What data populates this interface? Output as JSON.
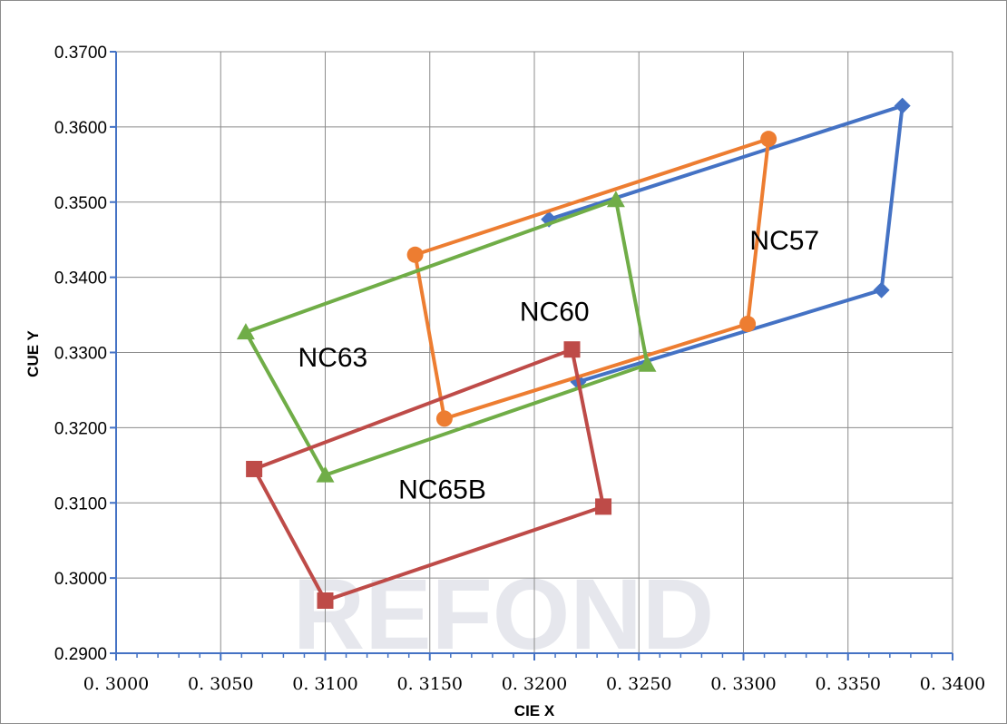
{
  "chart_data": {
    "type": "line",
    "xlabel": "CIE X",
    "ylabel": "CUE Y",
    "xlim": [
      0.3,
      0.34
    ],
    "ylim": [
      0.29,
      0.37
    ],
    "x_ticks": [
      0.3,
      0.305,
      0.31,
      0.315,
      0.32,
      0.325,
      0.33,
      0.335,
      0.34
    ],
    "y_ticks": [
      0.29,
      0.3,
      0.31,
      0.32,
      0.33,
      0.34,
      0.35,
      0.36,
      0.37
    ],
    "x_tick_labels": [
      "0. 3000",
      "0. 3050",
      "0. 3100",
      "0. 3150",
      "0. 3200",
      "0. 3250",
      "0. 3300",
      "0. 3350",
      "0. 3400"
    ],
    "y_tick_labels": [
      "0.2900",
      "0.3000",
      "0.3100",
      "0.3200",
      "0.3300",
      "0.3400",
      "0.3500",
      "0.3600",
      "0.3700"
    ],
    "grid": true,
    "watermark": "REFOND",
    "series": [
      {
        "name": "NC57",
        "color": "#4472c4",
        "marker": "diamond",
        "points": [
          [
            0.3207,
            0.3477
          ],
          [
            0.3376,
            0.3628
          ],
          [
            0.3366,
            0.3383
          ],
          [
            0.3221,
            0.3261
          ]
        ]
      },
      {
        "name": "NC60",
        "color": "#ed7d31",
        "marker": "circle",
        "points": [
          [
            0.3143,
            0.343
          ],
          [
            0.3312,
            0.3584
          ],
          [
            0.3302,
            0.3338
          ],
          [
            0.3157,
            0.3212
          ],
          [
            0.3143,
            0.343
          ]
        ]
      },
      {
        "name": "NC63",
        "color": "#70ad47",
        "marker": "triangle",
        "points": [
          [
            0.3062,
            0.3327
          ],
          [
            0.3239,
            0.3503
          ],
          [
            0.3254,
            0.3284
          ],
          [
            0.31,
            0.3137
          ],
          [
            0.3062,
            0.3327
          ]
        ]
      },
      {
        "name": "NC65B",
        "color": "#be4b48",
        "marker": "square",
        "points": [
          [
            0.3066,
            0.3145
          ],
          [
            0.3218,
            0.3304
          ],
          [
            0.3233,
            0.3095
          ],
          [
            0.31,
            0.297
          ],
          [
            0.3066,
            0.3145
          ]
        ]
      }
    ],
    "annotations": [
      {
        "text": "NC57",
        "x": 0.3303,
        "y": 0.3437
      },
      {
        "text": "NC60",
        "x": 0.3193,
        "y": 0.3342
      },
      {
        "text": "NC63",
        "x": 0.3087,
        "y": 0.3281
      },
      {
        "text": "NC65B",
        "x": 0.3135,
        "y": 0.3106
      }
    ]
  }
}
